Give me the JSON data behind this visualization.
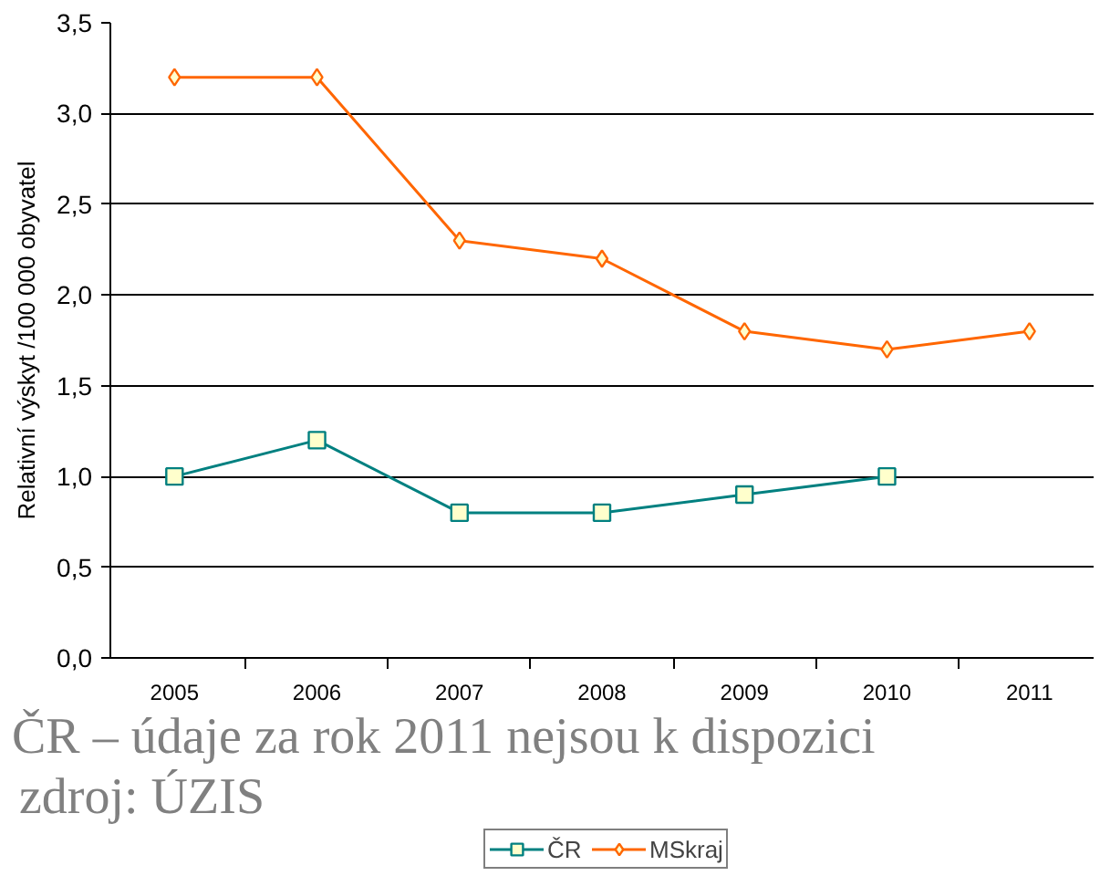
{
  "chart_data": {
    "type": "line",
    "ylabel": "Relativní výskyt /100 000 obyvatel",
    "categories": [
      "2005",
      "2006",
      "2007",
      "2008",
      "2009",
      "2010",
      "2011"
    ],
    "series": [
      {
        "name": "ČR",
        "color": "#008080",
        "marker": "square",
        "values": [
          1.0,
          1.2,
          0.8,
          0.8,
          0.9,
          1.0,
          null
        ]
      },
      {
        "name": "MSkraj",
        "color": "#ff6600",
        "marker": "diamond",
        "values": [
          3.2,
          3.2,
          2.3,
          2.2,
          1.8,
          1.7,
          1.8
        ]
      }
    ],
    "ylim": [
      0,
      3.5
    ],
    "yticks": [
      {
        "value": 0,
        "label": "0,0"
      },
      {
        "value": 0.5,
        "label": "0,5"
      },
      {
        "value": 1,
        "label": "1,0"
      },
      {
        "value": 1.5,
        "label": "1,5"
      },
      {
        "value": 2,
        "label": "2,0"
      },
      {
        "value": 2.5,
        "label": "2,5"
      },
      {
        "value": 3,
        "label": "3,0"
      },
      {
        "value": 3.5,
        "label": "3,5"
      }
    ],
    "grid": "y",
    "legend": "bottom",
    "line_style": "solid",
    "annotations": [
      "ČR – údaje za rok 2011 nejsou k dispozici",
      "zdroj: ÚZIS"
    ]
  }
}
